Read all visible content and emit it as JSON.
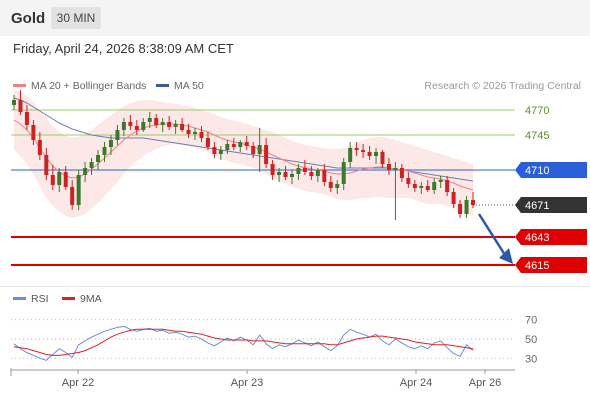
{
  "header": {
    "instrument": "Gold",
    "timeframe": "30 MIN",
    "datetime": "Friday, April 24, 2026 8:38:09 AM CET"
  },
  "legend": {
    "ma20_label": "MA 20 + Bollinger Bands",
    "ma50_label": "MA 50",
    "credit": "Research © 2026 Trading Central"
  },
  "rsi_legend": {
    "rsi_label": "RSI",
    "ma_label": "9MA"
  },
  "colors": {
    "ma20": "#f08080",
    "bands": "#fde4e4",
    "ma50": "#6a7fb0",
    "rsi": "#6b8ed8",
    "rsi_ma": "#dd2222",
    "bull": "#3a7a2a",
    "bear": "#cc2222",
    "resistance": "#9ccc65",
    "pivot": "#2b5fd9",
    "support": "#e00000",
    "current": "#333333",
    "arrow": "#2c5aa0"
  },
  "chart_data": [
    {
      "type": "candlestick",
      "title": "Gold 30 MIN",
      "x_labels": [
        "Apr 22",
        "Apr 23",
        "Apr 24",
        "Apr 26"
      ],
      "ylim": [
        4600,
        4800
      ],
      "current_price": "4671",
      "levels": [
        {
          "value": 4770,
          "label": "4770",
          "kind": "resistance"
        },
        {
          "value": 4745,
          "label": "4745",
          "kind": "resistance"
        },
        {
          "value": 4710,
          "label": "4710",
          "kind": "pivot"
        },
        {
          "value": 4643,
          "label": "4643",
          "kind": "support"
        },
        {
          "value": 4615,
          "label": "4615",
          "kind": "support"
        }
      ],
      "candles": [
        [
          4775,
          4785,
          4770,
          4780
        ],
        [
          4780,
          4790,
          4765,
          4768
        ],
        [
          4768,
          4775,
          4750,
          4755
        ],
        [
          4755,
          4760,
          4735,
          4740
        ],
        [
          4740,
          4748,
          4720,
          4725
        ],
        [
          4725,
          4732,
          4700,
          4705
        ],
        [
          4705,
          4715,
          4690,
          4695
        ],
        [
          4695,
          4712,
          4688,
          4708
        ],
        [
          4708,
          4714,
          4690,
          4693
        ],
        [
          4693,
          4700,
          4670,
          4675
        ],
        [
          4675,
          4710,
          4670,
          4705
        ],
        [
          4705,
          4718,
          4698,
          4712
        ],
        [
          4712,
          4722,
          4705,
          4718
        ],
        [
          4718,
          4730,
          4710,
          4725
        ],
        [
          4725,
          4738,
          4718,
          4733
        ],
        [
          4733,
          4745,
          4725,
          4740
        ],
        [
          4740,
          4755,
          4735,
          4750
        ],
        [
          4750,
          4762,
          4744,
          4758
        ],
        [
          4758,
          4765,
          4750,
          4754
        ],
        [
          4754,
          4760,
          4745,
          4750
        ],
        [
          4750,
          4762,
          4748,
          4758
        ],
        [
          4758,
          4768,
          4752,
          4762
        ],
        [
          4762,
          4766,
          4752,
          4755
        ],
        [
          4755,
          4762,
          4748,
          4758
        ],
        [
          4758,
          4764,
          4750,
          4753
        ],
        [
          4753,
          4760,
          4746,
          4756
        ],
        [
          4756,
          4762,
          4748,
          4750
        ],
        [
          4750,
          4756,
          4742,
          4746
        ],
        [
          4746,
          4752,
          4740,
          4748
        ],
        [
          4748,
          4754,
          4738,
          4742
        ],
        [
          4742,
          4748,
          4730,
          4733
        ],
        [
          4733,
          4738,
          4722,
          4726
        ],
        [
          4726,
          4734,
          4720,
          4730
        ],
        [
          4730,
          4740,
          4726,
          4736
        ],
        [
          4736,
          4742,
          4730,
          4733
        ],
        [
          4733,
          4740,
          4728,
          4738
        ],
        [
          4738,
          4744,
          4730,
          4734
        ],
        [
          4734,
          4738,
          4722,
          4726
        ],
        [
          4726,
          4752,
          4708,
          4735
        ],
        [
          4735,
          4742,
          4712,
          4716
        ],
        [
          4716,
          4720,
          4700,
          4705
        ],
        [
          4705,
          4712,
          4698,
          4708
        ],
        [
          4708,
          4714,
          4700,
          4703
        ],
        [
          4703,
          4710,
          4696,
          4706
        ],
        [
          4706,
          4716,
          4700,
          4712
        ],
        [
          4712,
          4720,
          4705,
          4708
        ],
        [
          4708,
          4714,
          4700,
          4704
        ],
        [
          4704,
          4712,
          4698,
          4710
        ],
        [
          4710,
          4716,
          4694,
          4698
        ],
        [
          4698,
          4704,
          4688,
          4692
        ],
        [
          4692,
          4700,
          4686,
          4696
        ],
        [
          4696,
          4722,
          4690,
          4718
        ],
        [
          4718,
          4738,
          4712,
          4732
        ],
        [
          4732,
          4738,
          4724,
          4730
        ],
        [
          4730,
          4736,
          4722,
          4728
        ],
        [
          4728,
          4734,
          4720,
          4724
        ],
        [
          4724,
          4732,
          4716,
          4728
        ],
        [
          4728,
          4730,
          4712,
          4716
        ],
        [
          4716,
          4722,
          4705,
          4710
        ],
        [
          4710,
          4718,
          4660,
          4712
        ],
        [
          4712,
          4716,
          4698,
          4702
        ],
        [
          4702,
          4708,
          4692,
          4696
        ],
        [
          4696,
          4700,
          4688,
          4692
        ],
        [
          4692,
          4698,
          4686,
          4694
        ],
        [
          4694,
          4700,
          4688,
          4690
        ],
        [
          4690,
          4702,
          4686,
          4698
        ],
        [
          4698,
          4704,
          4692,
          4700
        ],
        [
          4700,
          4704,
          4684,
          4688
        ],
        [
          4688,
          4692,
          4672,
          4676
        ],
        [
          4676,
          4680,
          4662,
          4666
        ],
        [
          4666,
          4684,
          4662,
          4680
        ],
        [
          4680,
          4688,
          4672,
          4675
        ]
      ],
      "ma20": [
        4760,
        4756,
        4750,
        4742,
        4732,
        4722,
        4714,
        4708,
        4704,
        4702,
        4703,
        4706,
        4711,
        4716,
        4722,
        4728,
        4734,
        4740,
        4745,
        4749,
        4752,
        4754,
        4755,
        4756,
        4756,
        4756,
        4755,
        4754,
        4752,
        4750,
        4748,
        4745,
        4742,
        4740,
        4738,
        4737,
        4735,
        4733,
        4731,
        4728,
        4725,
        4722,
        4719,
        4716,
        4714,
        4712,
        4711,
        4710,
        4709,
        4707,
        4706,
        4706,
        4707,
        4709,
        4711,
        4712,
        4713,
        4713,
        4712,
        4711,
        4710,
        4709,
        4707,
        4705,
        4703,
        4702,
        4701,
        4699,
        4697,
        4694,
        4692,
        4690
      ],
      "upper_band": [
        4790,
        4788,
        4784,
        4778,
        4770,
        4762,
        4754,
        4748,
        4744,
        4742,
        4743,
        4746,
        4750,
        4755,
        4760,
        4765,
        4770,
        4774,
        4777,
        4779,
        4780,
        4780,
        4779,
        4778,
        4777,
        4776,
        4775,
        4774,
        4772,
        4770,
        4768,
        4766,
        4763,
        4761,
        4759,
        4758,
        4756,
        4754,
        4752,
        4750,
        4748,
        4745,
        4742,
        4739,
        4737,
        4735,
        4734,
        4733,
        4732,
        4731,
        4731,
        4732,
        4734,
        4737,
        4740,
        4742,
        4743,
        4743,
        4742,
        4740,
        4738,
        4736,
        4734,
        4732,
        4730,
        4728,
        4726,
        4724,
        4722,
        4720,
        4718,
        4716
      ],
      "lower_band": [
        4730,
        4724,
        4716,
        4706,
        4694,
        4682,
        4674,
        4668,
        4664,
        4662,
        4663,
        4666,
        4672,
        4677,
        4684,
        4691,
        4698,
        4706,
        4713,
        4719,
        4724,
        4728,
        4731,
        4734,
        4735,
        4736,
        4735,
        4734,
        4732,
        4730,
        4728,
        4724,
        4721,
        4719,
        4717,
        4716,
        4714,
        4712,
        4710,
        4706,
        4702,
        4699,
        4696,
        4693,
        4691,
        4689,
        4688,
        4687,
        4686,
        4683,
        4681,
        4680,
        4680,
        4681,
        4682,
        4682,
        4683,
        4683,
        4682,
        4682,
        4682,
        4682,
        4680,
        4678,
        4676,
        4676,
        4676,
        4674,
        4672,
        4668,
        4666,
        4664
      ],
      "ma50": [
        4782,
        4780,
        4777,
        4773,
        4769,
        4765,
        4761,
        4757,
        4754,
        4751,
        4749,
        4747,
        4745,
        4744,
        4743,
        4742,
        4742,
        4742,
        4742,
        4742,
        4742,
        4741,
        4740,
        4739,
        4738,
        4737,
        4736,
        4735,
        4734,
        4733,
        4732,
        4731,
        4730,
        4729,
        4728,
        4727,
        4726,
        4725,
        4724,
        4723,
        4722,
        4721,
        4720,
        4719,
        4718,
        4717,
        4716,
        4715,
        4714,
        4713,
        4712,
        4712,
        4712,
        4712,
        4712,
        4712,
        4712,
        4712,
        4712,
        4711,
        4710,
        4709,
        4708,
        4707,
        4706,
        4705,
        4704,
        4703,
        4702,
        4701,
        4700,
        4699
      ]
    },
    {
      "type": "line",
      "title": "RSI",
      "ylim": [
        20,
        80
      ],
      "y_ticks": [
        70,
        50,
        30
      ],
      "x_labels": [
        "Apr 22",
        "Apr 23",
        "Apr 24",
        "Apr 26"
      ],
      "series": [
        {
          "name": "RSI",
          "values": [
            45,
            40,
            36,
            33,
            30,
            28,
            34,
            40,
            36,
            31,
            44,
            48,
            52,
            55,
            58,
            60,
            62,
            63,
            60,
            58,
            60,
            61,
            58,
            59,
            56,
            57,
            55,
            52,
            53,
            50,
            46,
            43,
            47,
            51,
            48,
            52,
            49,
            44,
            54,
            45,
            40,
            44,
            42,
            45,
            49,
            46,
            43,
            47,
            42,
            38,
            43,
            54,
            60,
            57,
            55,
            52,
            55,
            48,
            44,
            50,
            46,
            42,
            40,
            43,
            40,
            46,
            48,
            41,
            35,
            32,
            44,
            38
          ]
        },
        {
          "name": "9MA",
          "values": [
            42,
            41,
            40,
            38,
            36,
            34,
            33,
            33,
            34,
            35,
            36,
            38,
            41,
            44,
            48,
            52,
            55,
            57,
            59,
            60,
            60,
            60,
            60,
            60,
            59,
            58,
            58,
            57,
            56,
            55,
            53,
            51,
            50,
            49,
            49,
            49,
            49,
            48,
            48,
            48,
            47,
            46,
            45,
            45,
            45,
            45,
            45,
            45,
            45,
            44,
            44,
            46,
            48,
            50,
            51,
            52,
            53,
            53,
            52,
            51,
            50,
            49,
            47,
            46,
            45,
            44,
            44,
            44,
            43,
            42,
            41,
            40
          ]
        }
      ]
    }
  ]
}
